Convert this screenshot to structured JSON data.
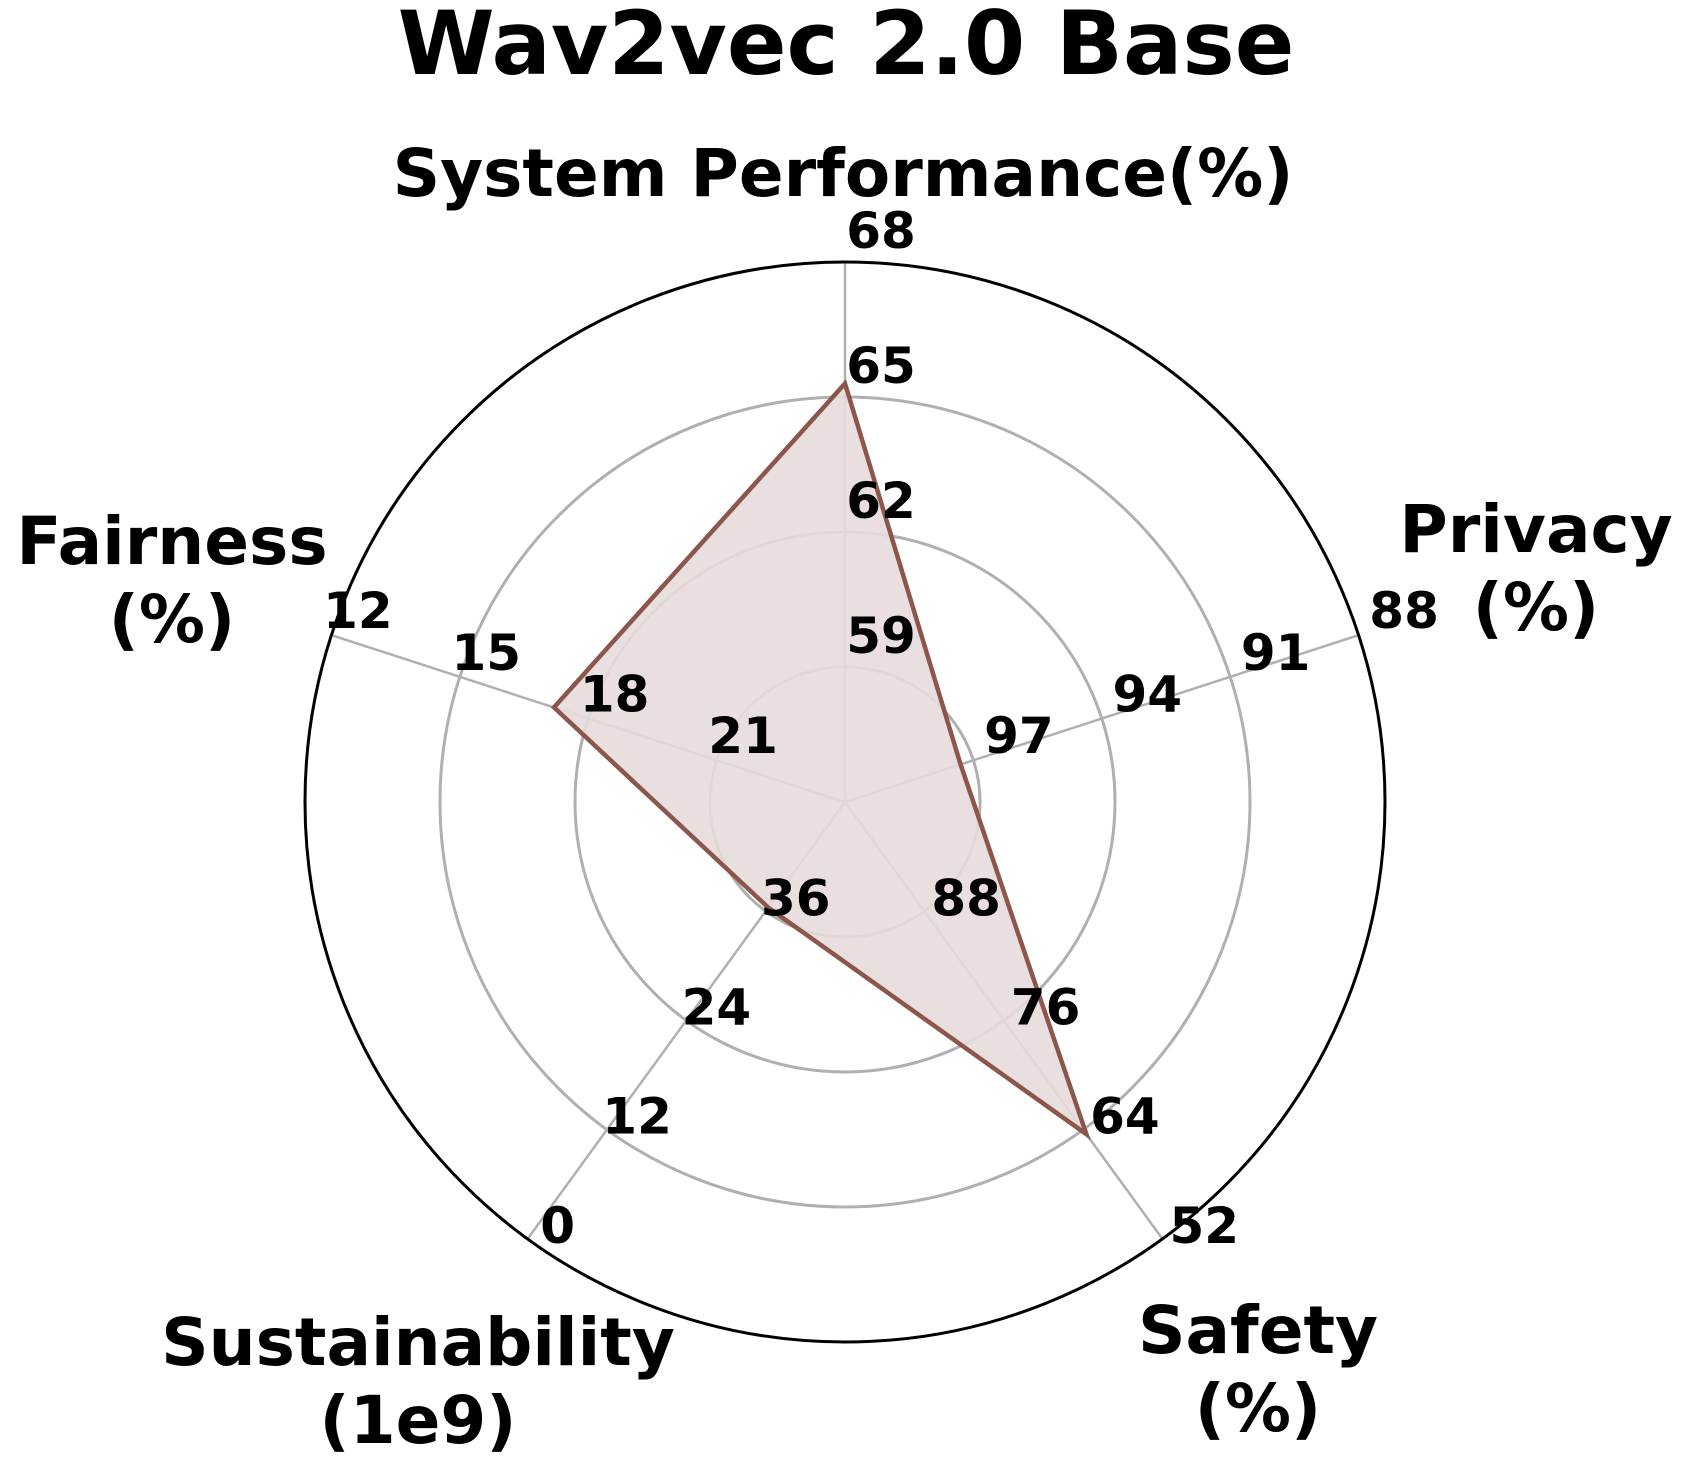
{
  "chart_data": {
    "type": "radar",
    "title": "Wav2vec 2.0 Base",
    "axes": [
      {
        "label": [
          "System Performance(%)"
        ],
        "ticks": [
          "68",
          "65",
          "62",
          "59"
        ],
        "tick_values": [
          68,
          65,
          62,
          59
        ],
        "value": 65.3
      },
      {
        "label": [
          "Privacy",
          "(%)"
        ],
        "ticks": [
          "88",
          "91",
          "94",
          "97"
        ],
        "tick_values": [
          88,
          91,
          94,
          97
        ],
        "value": 97.3
      },
      {
        "label": [
          "Safety",
          "(%)"
        ],
        "ticks": [
          "52",
          "64",
          "76",
          "88"
        ],
        "tick_values": [
          52,
          64,
          76,
          88
        ],
        "value": 63.5
      },
      {
        "label": [
          "Sustainability",
          "(1e9)"
        ],
        "ticks": [
          "0",
          "12",
          "24",
          "36"
        ],
        "tick_values": [
          0,
          12,
          24,
          36
        ],
        "value": 36.4
      },
      {
        "label": [
          "Fairness",
          "(%)"
        ],
        "ticks": [
          "12",
          "15",
          "18",
          "21"
        ],
        "tick_values": [
          12,
          15,
          18,
          21
        ],
        "value": 17.2
      }
    ],
    "grid": true,
    "colors": {
      "accent": "#8c564b",
      "fill": "#e8dcdb",
      "grid": "#b0b0b0",
      "text": "#000000"
    }
  }
}
